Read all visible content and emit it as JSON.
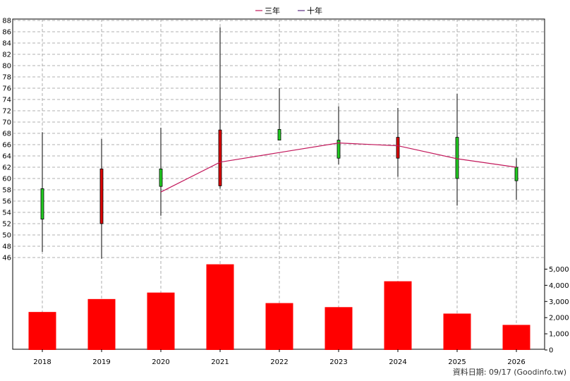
{
  "chart_data": {
    "type": "candlestick+bar",
    "legend": [
      {
        "label": "三年",
        "color": "#c2185b"
      },
      {
        "label": "十年",
        "color": "#5b2c83"
      }
    ],
    "categories": [
      "2018",
      "2019",
      "2020",
      "2021",
      "2022",
      "2023",
      "2024",
      "2025",
      "2026"
    ],
    "price_axis": {
      "ylim": [
        44,
        88
      ],
      "ticks": [
        "46",
        "48",
        "50",
        "52",
        "54",
        "56",
        "58",
        "60",
        "62",
        "64",
        "66",
        "68",
        "70",
        "72",
        "74",
        "76",
        "78",
        "80",
        "82",
        "84",
        "86",
        "88"
      ]
    },
    "volume_axis": {
      "ylim": [
        0,
        5500
      ],
      "ticks": [
        "0",
        "1,000",
        "2,000",
        "3,000",
        "4,000",
        "5,000"
      ]
    },
    "candles": [
      {
        "year": "2018",
        "open": 52.8,
        "close": 58.2,
        "high": 68.2,
        "low": 47.0,
        "color": "#22cc22"
      },
      {
        "year": "2019",
        "open": 61.7,
        "close": 52.0,
        "high": 67.0,
        "low": 45.8,
        "color": "#dd0000"
      },
      {
        "year": "2020",
        "open": 58.6,
        "close": 61.7,
        "high": 69.0,
        "low": 53.4,
        "color": "#22cc22"
      },
      {
        "year": "2021",
        "open": 68.6,
        "close": 58.7,
        "high": 86.8,
        "low": 58.2,
        "color": "#dd0000"
      },
      {
        "year": "2022",
        "open": 66.8,
        "close": 68.7,
        "high": 76.0,
        "low": 66.8,
        "color": "#22cc22"
      },
      {
        "year": "2023",
        "open": 63.6,
        "close": 66.8,
        "high": 72.8,
        "low": 62.5,
        "color": "#22cc22"
      },
      {
        "year": "2024",
        "open": 67.3,
        "close": 63.6,
        "high": 72.5,
        "low": 60.3,
        "color": "#dd0000"
      },
      {
        "year": "2025",
        "open": 60.0,
        "close": 67.3,
        "high": 75.0,
        "low": 55.2,
        "color": "#22cc22"
      },
      {
        "year": "2026",
        "open": 59.6,
        "close": 62.0,
        "high": 63.6,
        "low": 56.2,
        "color": "#22cc22"
      }
    ],
    "series": [
      {
        "name": "三年",
        "x": [
          "2020",
          "2021",
          "2022",
          "2023",
          "2024",
          "2025",
          "2026"
        ],
        "values": [
          57.6,
          62.9,
          64.6,
          66.3,
          65.8,
          63.5,
          62.0
        ],
        "color": "#c2185b"
      }
    ],
    "volume": [
      2350,
      3150,
      3550,
      5300,
      2900,
      2650,
      4250,
      2250,
      1550
    ],
    "volume_color": "#ff0000",
    "grid": true
  },
  "source_text": "資料日期: 09/17  (Goodinfo.tw)"
}
